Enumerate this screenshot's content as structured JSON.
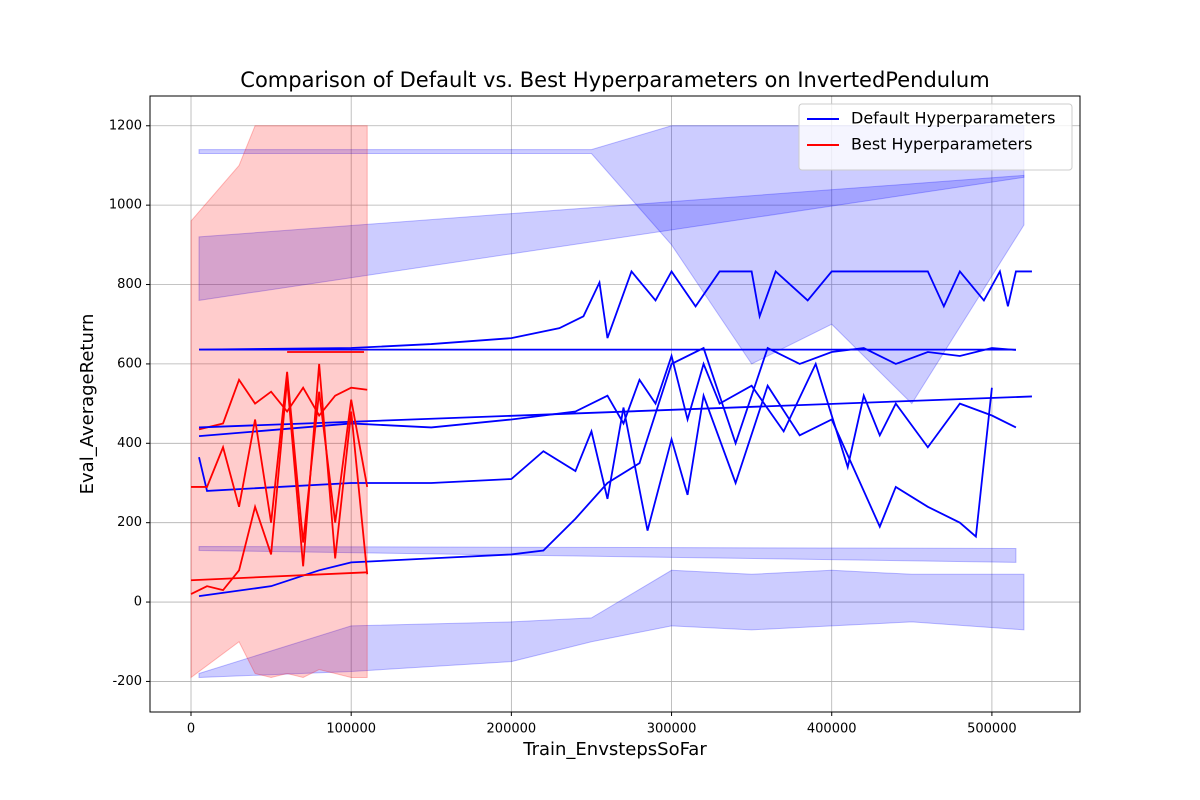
{
  "chart_data": {
    "type": "line",
    "title": "Comparison of Default vs. Best Hyperparameters on InvertedPendulum",
    "x_label": "Train_EnvstepsSoFar",
    "y_label": "Eval_AverageReturn",
    "xlim": [
      -25600,
      555000
    ],
    "ylim": [
      -277,
      1275
    ],
    "xticks": [
      0,
      100000,
      200000,
      300000,
      400000,
      500000
    ],
    "yticks": [
      -200,
      0,
      200,
      400,
      600,
      800,
      1000,
      1200
    ],
    "grid": true,
    "legend": "upper right",
    "series": [
      {
        "name": "Default Hyperparameters",
        "color": "#0000ff",
        "x": [
          5000,
          100000,
          150000,
          200000,
          230000,
          245000,
          255000,
          260000,
          275000,
          290000,
          300000,
          315000,
          330000,
          350000,
          355000,
          365000,
          385000,
          400000,
          460000,
          470000,
          480000,
          495000,
          505000,
          510000,
          515000,
          525000
        ],
        "values": [
          636,
          640,
          650,
          665,
          690,
          720,
          805,
          665,
          833,
          760,
          833,
          745,
          833,
          833,
          720,
          833,
          760,
          833,
          833,
          745,
          833,
          760,
          833,
          745,
          833,
          833
        ]
      },
      {
        "name": "Best Hyperparameters",
        "color": "#ff0000",
        "x": [
          5000,
          20000,
          30000,
          40000,
          50000,
          60000,
          70000,
          80000,
          90000,
          100000,
          110000
        ],
        "values": [
          435,
          450,
          560,
          500,
          530,
          480,
          540,
          470,
          520,
          540,
          535
        ]
      },
      {
        "color": "#0000ff",
        "x": [
          5000,
          100000,
          150000,
          200000,
          240000,
          260000,
          270000,
          280000,
          290000,
          300000,
          310000,
          320000,
          330000,
          350000,
          370000,
          390000,
          410000,
          420000,
          430000,
          440000,
          460000,
          480000,
          500000,
          515000
        ],
        "values": [
          418,
          450,
          440,
          460,
          480,
          520,
          450,
          560,
          500,
          620,
          460,
          600,
          500,
          545,
          430,
          600,
          340,
          520,
          420,
          500,
          390,
          500,
          470,
          440
        ]
      },
      {
        "color": "#0000ff",
        "x": [
          5000,
          10000,
          100000,
          150000,
          200000,
          220000,
          240000,
          250000,
          260000,
          270000,
          285000,
          300000,
          310000,
          320000,
          340000,
          360000,
          380000,
          400000,
          430000,
          440000,
          460000,
          480000,
          490000,
          500000
        ],
        "values": [
          365,
          280,
          300,
          300,
          310,
          380,
          330,
          430,
          260,
          490,
          180,
          410,
          270,
          520,
          300,
          545,
          420,
          460,
          190,
          290,
          240,
          200,
          165,
          540
        ]
      },
      {
        "color": "#0000ff",
        "x": [
          5000,
          50000,
          80000,
          100000,
          150000,
          200000,
          220000,
          240000,
          260000,
          280000,
          300000,
          320000,
          340000,
          360000,
          380000,
          400000,
          420000,
          440000,
          460000,
          480000,
          500000,
          515000
        ],
        "values": [
          15,
          40,
          80,
          100,
          110,
          120,
          130,
          210,
          300,
          350,
          600,
          640,
          400,
          640,
          600,
          630,
          640,
          600,
          630,
          620,
          640,
          635
        ]
      },
      {
        "color": "#0000ff",
        "x": [
          5000,
          515000
        ],
        "values": [
          636,
          636
        ]
      },
      {
        "color": "#0000ff",
        "x": [
          5000,
          525000
        ],
        "values": [
          440,
          518
        ]
      },
      {
        "color": "#ff0000",
        "x": [
          0,
          10000,
          20000,
          30000,
          40000,
          50000,
          60000,
          70000,
          80000,
          90000,
          100000,
          110000
        ],
        "values": [
          290,
          290,
          390,
          240,
          460,
          200,
          580,
          150,
          530,
          200,
          510,
          290
        ]
      },
      {
        "color": "#ff0000",
        "x": [
          0,
          10000,
          20000,
          30000,
          40000,
          50000,
          60000,
          70000,
          80000,
          90000,
          100000,
          110000
        ],
        "values": [
          20,
          40,
          30,
          80,
          240,
          120,
          560,
          90,
          600,
          110,
          480,
          70
        ]
      },
      {
        "color": "#ff0000",
        "x": [
          0,
          110000
        ],
        "values": [
          55,
          75
        ]
      },
      {
        "color": "#ff0000",
        "x": [
          60000,
          108000
        ],
        "values": [
          630,
          630
        ]
      }
    ],
    "bands": [
      {
        "color": "#0000ff",
        "x": [
          5000,
          250000,
          300000,
          350000,
          400000,
          450000,
          520000
        ],
        "lower": [
          1130,
          1130,
          900,
          600,
          700,
          500,
          950
        ],
        "upper": [
          1140,
          1140,
          1200,
          1200,
          1200,
          1200,
          1200
        ]
      },
      {
        "color": "#0000ff",
        "x": [
          5000,
          520000
        ],
        "lower": [
          760,
          1070
        ],
        "upper": [
          920,
          1075
        ]
      },
      {
        "color": "#0000ff",
        "x": [
          5000,
          100000,
          200000,
          250000,
          300000,
          350000,
          400000,
          450000,
          520000
        ],
        "lower": [
          -190,
          -175,
          -150,
          -100,
          -60,
          -70,
          -60,
          -50,
          -70
        ],
        "upper": [
          -180,
          -60,
          -50,
          -40,
          80,
          70,
          80,
          70,
          70
        ]
      },
      {
        "color": "#0000ff",
        "x": [
          5000,
          515000
        ],
        "lower": [
          130,
          100
        ],
        "upper": [
          140,
          135
        ]
      },
      {
        "color": "#ff0000",
        "x": [
          0,
          30000,
          40000,
          50000,
          60000,
          70000,
          80000,
          90000,
          100000,
          110000
        ],
        "lower": [
          -190,
          -100,
          -180,
          -190,
          -180,
          -190,
          -170,
          -180,
          -190,
          -190
        ],
        "upper": [
          960,
          1100,
          1200,
          1200,
          1200,
          1200,
          1200,
          1200,
          1200,
          1200
        ]
      }
    ]
  }
}
